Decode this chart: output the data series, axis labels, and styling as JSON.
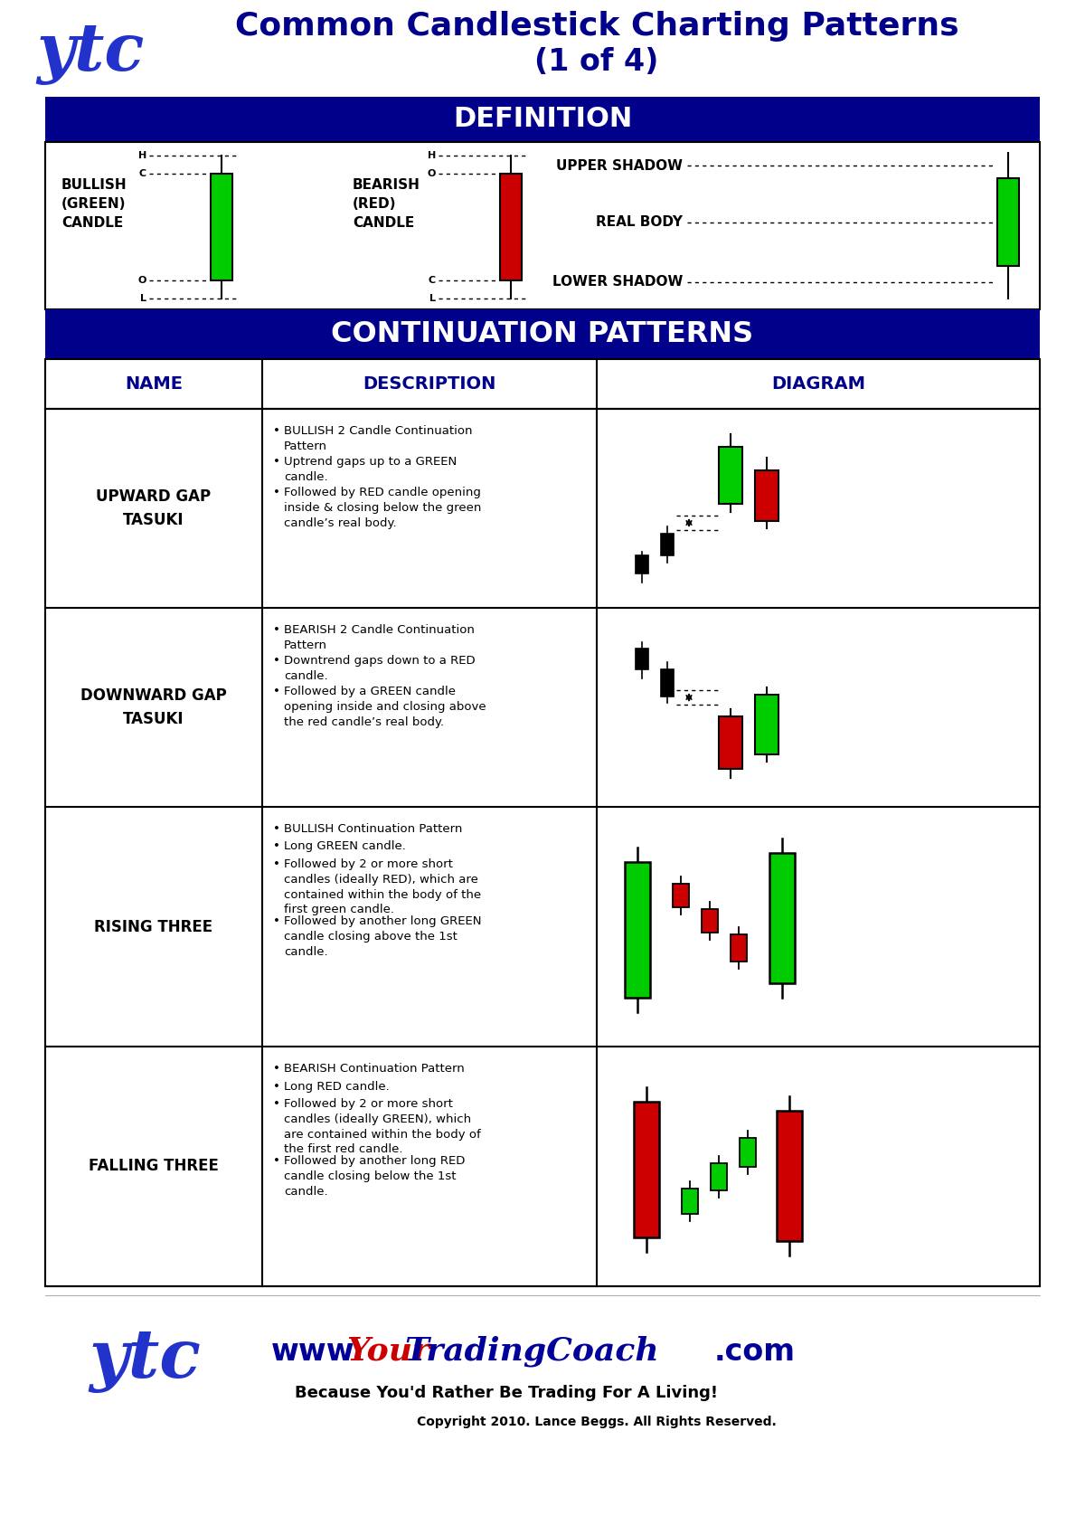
{
  "title_line1": "Common Candlestick Charting Patterns",
  "title_line2": "(1 of 4)",
  "title_color": "#00008B",
  "header_bg": "#00008B",
  "header_text_color": "#FFFFFF",
  "definition_title": "DEFINITION",
  "continuation_title": "CONTINUATION PATTERNS",
  "col_headers": [
    "NAME",
    "DESCRIPTION",
    "DIAGRAM"
  ],
  "col_header_color": "#00008B",
  "green_color": "#00CC00",
  "red_color": "#CC0000",
  "black_color": "#000000",
  "bg_color": "#FFFFFF",
  "patterns": [
    {
      "name": "UPWARD GAP\nTASUKI",
      "bullets": [
        "BULLISH 2 Candle Continuation\nPattern",
        "Uptrend gaps up to a GREEN\ncandle.",
        "Followed by RED candle opening\ninside & closing below the green\ncandle’s real body."
      ]
    },
    {
      "name": "DOWNWARD GAP\nTASUKI",
      "bullets": [
        "BEARISH 2 Candle Continuation\nPattern",
        "Downtrend gaps down to a RED\ncandle.",
        "Followed by a GREEN candle\nopening inside and closing above\nthe red candle’s real body."
      ]
    },
    {
      "name": "RISING THREE",
      "bullets": [
        "BULLISH Continuation Pattern",
        "Long GREEN candle.",
        "Followed by 2 or more short\ncandles (ideally RED), which are\ncontained within the body of the\nfirst green candle.",
        "Followed by another long GREEN\ncandle closing above the 1st\ncandle."
      ]
    },
    {
      "name": "FALLING THREE",
      "bullets": [
        "BEARISH Continuation Pattern",
        "Long RED candle.",
        "Followed by 2 or more short\ncandles (ideally GREEN), which\nare contained within the body of\nthe first red candle.",
        "Followed by another long RED\ncandle closing below the 1st\ncandle."
      ]
    }
  ],
  "footer_sub": "Because You'd Rather Be Trading For A Living!",
  "footer_copy": "Copyright 2010. Lance Beggs. All Rights Reserved."
}
